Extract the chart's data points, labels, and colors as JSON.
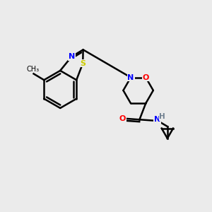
{
  "bg_color": "#ebebeb",
  "bond_color": "#000000",
  "bond_width": 1.8,
  "atom_colors": {
    "S": "#cccc00",
    "N": "#0000ff",
    "O": "#ff0000",
    "H": "#708090",
    "C": "#000000"
  },
  "figsize": [
    3.0,
    3.0
  ],
  "dpi": 100
}
